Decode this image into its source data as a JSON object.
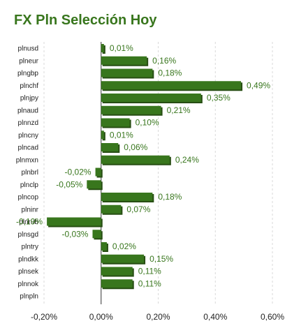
{
  "chart_data": {
    "type": "bar",
    "orientation": "horizontal",
    "title": "FX Pln Selección Hoy",
    "categories": [
      "plnusd",
      "plneur",
      "plngbp",
      "plnchf",
      "plnjpy",
      "plnaud",
      "plnnzd",
      "plncny",
      "plncad",
      "plnmxn",
      "plnbrl",
      "plnclp",
      "plncop",
      "plninr",
      "plnrub",
      "plnsgd",
      "plntry",
      "plndkk",
      "plnsek",
      "plnnok",
      "plnpln"
    ],
    "values": [
      0.01,
      0.16,
      0.18,
      0.49,
      0.35,
      0.21,
      0.1,
      0.01,
      0.06,
      0.24,
      -0.02,
      -0.05,
      0.18,
      0.07,
      -0.19,
      -0.03,
      0.02,
      0.15,
      0.11,
      0.11,
      null
    ],
    "value_labels": [
      "0,01%",
      "0,16%",
      "0,18%",
      "0,49%",
      "0,35%",
      "0,21%",
      "0,10%",
      "0,01%",
      "0,06%",
      "0,24%",
      "-0,02%",
      "-0,05%",
      "0,18%",
      "0,07%",
      "-0,19%",
      "-0,03%",
      "0,02%",
      "0,15%",
      "0,11%",
      "0,11%",
      ""
    ],
    "xlim": [
      -0.2,
      0.6
    ],
    "xticks": [
      -0.2,
      0.0,
      0.2,
      0.4,
      0.6
    ],
    "xtick_labels": [
      "-0,20%",
      "0,00%",
      "0,20%",
      "0,40%",
      "0,60%"
    ],
    "xlabel": "",
    "ylabel": "",
    "grid": true,
    "bar_color": "#38761d",
    "bar_shadow_color": "#274e13",
    "text_color": "#38761d"
  }
}
